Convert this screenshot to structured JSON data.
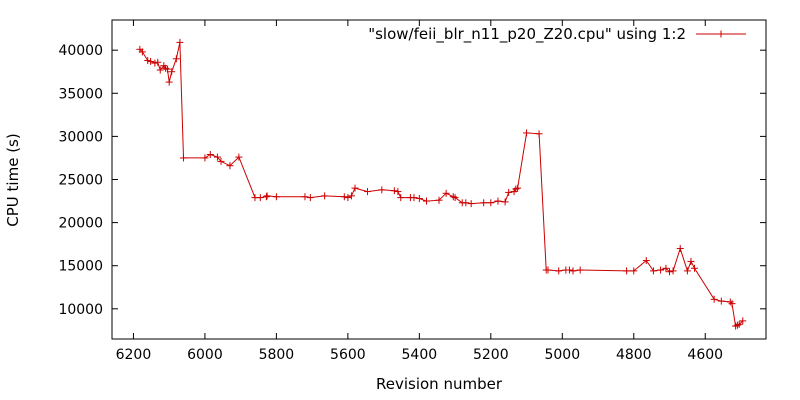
{
  "chart_data": {
    "type": "line",
    "title": "",
    "xlabel": "Revision number",
    "ylabel": "CPU time (s)",
    "xlim": [
      6260,
      4430
    ],
    "ylim": [
      6500,
      43500
    ],
    "x_reversed": true,
    "grid": false,
    "legend_position": "top-right",
    "x_ticks": [
      6200,
      6000,
      5800,
      5600,
      5400,
      5200,
      5000,
      4800,
      4600
    ],
    "x_tick_labels": [
      "6200",
      "6000",
      "5800",
      "5600",
      "5400",
      "5200",
      "5000",
      "4800",
      "4600"
    ],
    "y_ticks": [
      10000,
      15000,
      20000,
      25000,
      30000,
      35000,
      40000
    ],
    "y_tick_labels": [
      "10000",
      "15000",
      "20000",
      "25000",
      "30000",
      "35000",
      "40000"
    ],
    "colors": {
      "series": "#cc0000",
      "axes": "#000000"
    },
    "marker": "plus",
    "series": [
      {
        "name": "\"slow/feii_blr_n11_p20_Z20.cpu\" using 1:2",
        "x": [
          6182,
          6175,
          6160,
          6152,
          6140,
          6132,
          6125,
          6115,
          6110,
          6105,
          6100,
          6093,
          6080,
          6070,
          6060,
          6000,
          5985,
          5965,
          5955,
          5930,
          5905,
          5860,
          5845,
          5828,
          5826,
          5800,
          5720,
          5705,
          5665,
          5610,
          5600,
          5590,
          5580,
          5545,
          5505,
          5470,
          5460,
          5452,
          5425,
          5415,
          5400,
          5380,
          5345,
          5325,
          5305,
          5300,
          5280,
          5270,
          5255,
          5220,
          5200,
          5180,
          5160,
          5150,
          5135,
          5130,
          5125,
          5100,
          5065,
          5045,
          5040,
          5010,
          4990,
          4980,
          4970,
          4950,
          4820,
          4800,
          4765,
          4745,
          4725,
          4710,
          4700,
          4690,
          4670,
          4650,
          4640,
          4630,
          4575,
          4555,
          4530,
          4525,
          4515,
          4510,
          4505,
          4495
        ],
        "y": [
          40100,
          39800,
          38800,
          38700,
          38500,
          38600,
          37700,
          38200,
          37900,
          37800,
          36300,
          37500,
          39000,
          40900,
          27500,
          27500,
          27900,
          27600,
          27100,
          26600,
          27600,
          22900,
          22900,
          23000,
          23100,
          23000,
          23000,
          22900,
          23100,
          23000,
          22900,
          23100,
          24000,
          23600,
          23800,
          23700,
          23600,
          22900,
          22900,
          22900,
          22800,
          22500,
          22600,
          23400,
          23000,
          22900,
          22300,
          22300,
          22200,
          22300,
          22300,
          22500,
          22400,
          23500,
          23600,
          23900,
          24000,
          30400,
          30300,
          14500,
          14500,
          14400,
          14500,
          14500,
          14400,
          14500,
          14400,
          14400,
          15600,
          14400,
          14500,
          14700,
          14300,
          14400,
          17000,
          14400,
          15500,
          14700,
          11100,
          10900,
          10800,
          10600,
          8000,
          8100,
          8200,
          8600
        ]
      }
    ]
  }
}
